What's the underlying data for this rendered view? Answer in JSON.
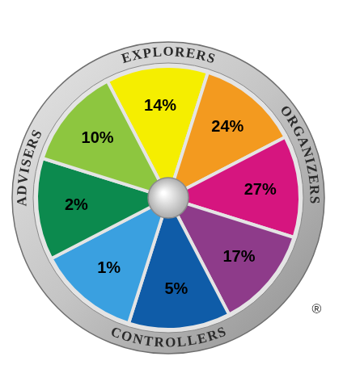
{
  "chart_data": {
    "type": "doughnut",
    "values": [
      14,
      24,
      27,
      17,
      5,
      1,
      2,
      10
    ],
    "value_labels": [
      "14%",
      "24%",
      "27%",
      "17%",
      "5%",
      "1%",
      "2%",
      "10%"
    ],
    "colors": [
      "#f5ee00",
      "#f39a1f",
      "#d6157f",
      "#8e3b8a",
      "#0f5ca8",
      "#3aa0e0",
      "#0c8a4e",
      "#8dc63f"
    ],
    "data_labels": true,
    "legend": false,
    "annotations": [
      "EXPLORERS",
      "ORGANIZERS",
      "CONTROLLERS",
      "ADVISERS",
      "®"
    ]
  }
}
